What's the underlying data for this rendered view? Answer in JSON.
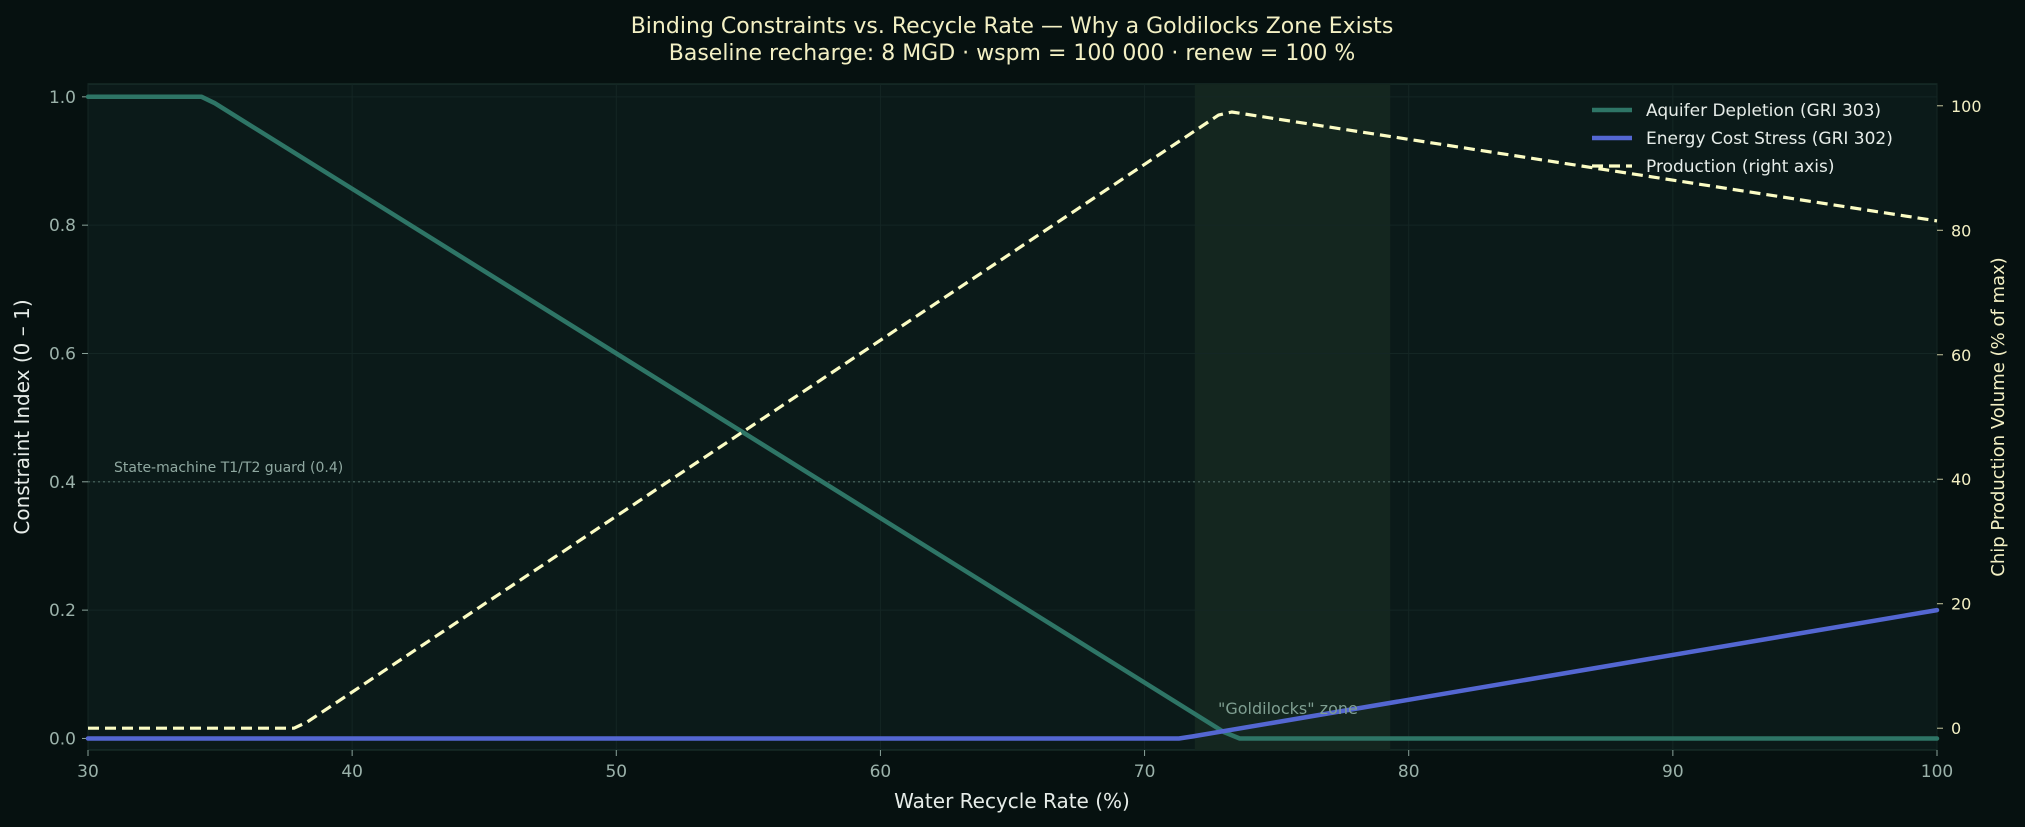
{
  "chart_data": {
    "type": "line",
    "title": "Binding Constraints vs. Recycle Rate — Why a Goldilocks Zone Exists",
    "subtitle": "Baseline recharge: 8 MGD  ·  wspm = 100 000  ·  renew = 100 %",
    "xlabel": "Water Recycle Rate  (%)",
    "ylabel": "Constraint Index  (0 – 1)",
    "ylabel_right": "Chip Production Volume  (% of max)",
    "xlim": [
      30,
      100
    ],
    "ylim": [
      -0.018,
      1.02
    ],
    "ylim_right": [
      -3.5,
      103.5
    ],
    "xticks": [
      30,
      40,
      50,
      60,
      70,
      80,
      90,
      100
    ],
    "xtick_labels": [
      "30",
      "40",
      "50",
      "60",
      "70",
      "80",
      "90",
      "100"
    ],
    "yticks": [
      0,
      0.2,
      0.4,
      0.6,
      0.8,
      1.0
    ],
    "ytick_labels": [
      "0.0",
      "0.2",
      "0.4",
      "0.6",
      "0.8",
      "1.0"
    ],
    "yticks_right": [
      0,
      20,
      40,
      60,
      80,
      100
    ],
    "ytick_labels_right": [
      "0",
      "20",
      "40",
      "60",
      "80",
      "100"
    ],
    "grid": true,
    "legend_position": "top-right",
    "series": [
      {
        "name": "Aquifer Depletion  (GRI 303)",
        "axis": "left",
        "color": "#2e7566",
        "style": "solid",
        "x": [
          30,
          34.3,
          34.8,
          73,
          73.6,
          100
        ],
        "y": [
          1.0,
          1.0,
          0.99,
          0.01,
          0.0,
          0.0
        ]
      },
      {
        "name": "Energy Cost Stress (GRI 302)",
        "axis": "left",
        "color": "#5467d2",
        "style": "solid",
        "x": [
          30,
          71.3,
          71.8,
          100
        ],
        "y": [
          0.0,
          0.0,
          0.003,
          0.2
        ]
      },
      {
        "name": "Production (right axis)",
        "axis": "right",
        "color": "#fbfcc4",
        "style": "dashed",
        "x": [
          30,
          37.8,
          38.3,
          72.8,
          73.3,
          100
        ],
        "y": [
          0.0,
          0.0,
          1.0,
          98.5,
          99.0,
          81.5
        ]
      }
    ],
    "hline": {
      "y": 0.4,
      "label": "State-machine T1/T2 guard (0.4)"
    },
    "shaded_region": {
      "x": [
        71.9,
        79.3
      ],
      "label": "\"Goldilocks\" zone"
    }
  },
  "colors": {
    "background": "#061110",
    "plot_background": "#0b1a19",
    "zone": "#14261f",
    "grid": "#142624"
  }
}
